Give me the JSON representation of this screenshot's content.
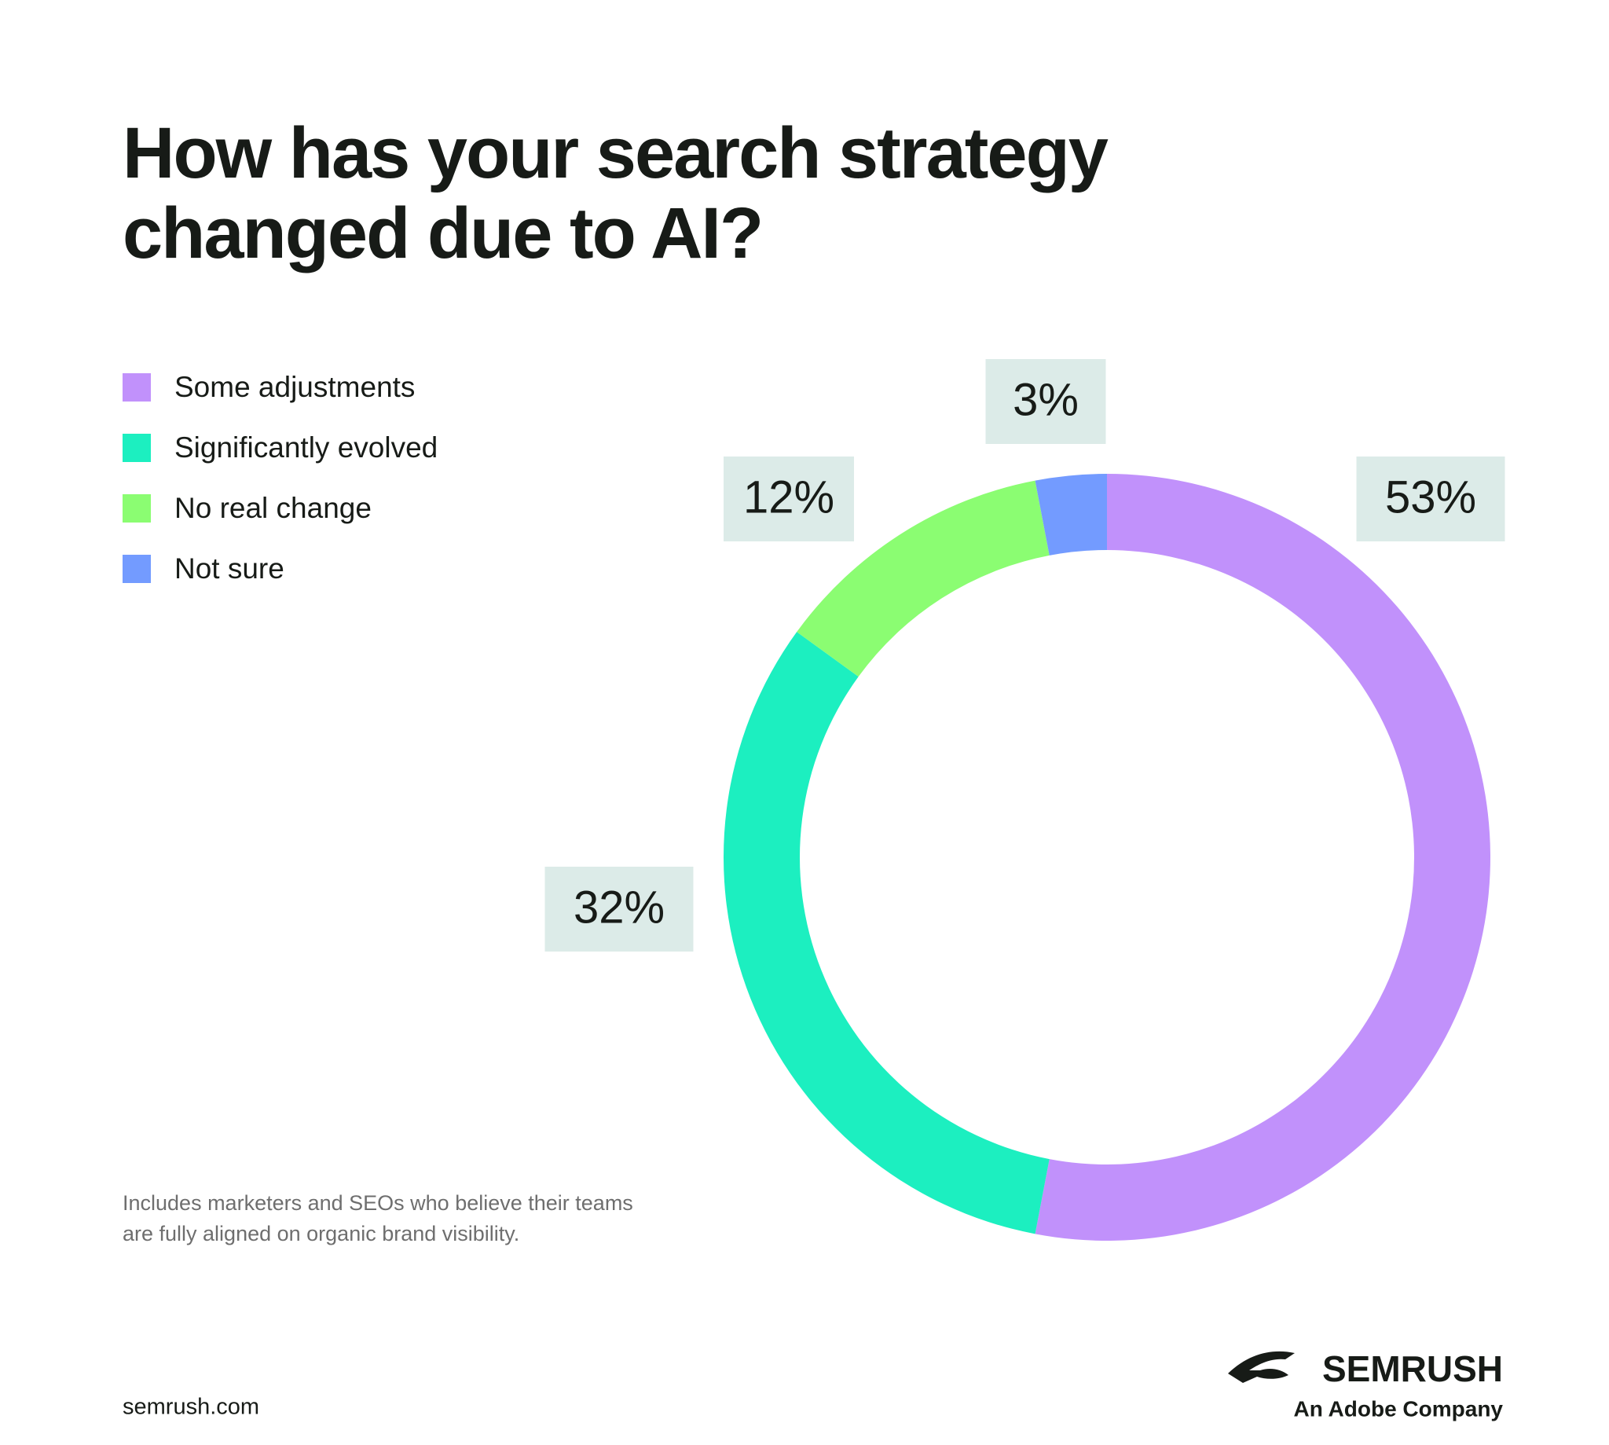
{
  "chart_data": {
    "type": "pie",
    "donut": true,
    "title": "How has your search strategy changed due to AI?",
    "categories": [
      "Some adjustments",
      "Significantly evolved",
      "No real change",
      "Not sure"
    ],
    "values": [
      53,
      32,
      12,
      3
    ],
    "value_labels": [
      "53%",
      "32%",
      "12%",
      "3%"
    ],
    "colors": [
      "#c191fb",
      "#1cefc0",
      "#8bfd72",
      "#739bff"
    ],
    "footnote": [
      "Includes marketers and SEOs who believe their teams",
      "are fully aligned on organic brand visibility."
    ],
    "source": "semrush.com",
    "brand": "SEMRUSH",
    "brand_tagline": "An Adobe Company"
  }
}
